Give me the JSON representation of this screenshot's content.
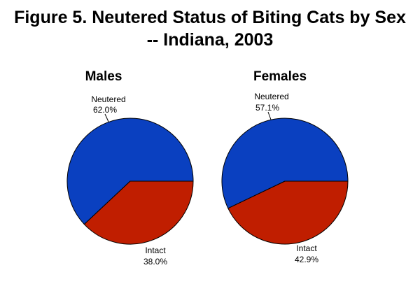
{
  "figure": {
    "title_line1": "Figure 5. Neutered Status of Biting Cats by Sex",
    "title_line2": "-- Indiana, 2003"
  },
  "colors": {
    "neutered": "#0a40c0",
    "intact": "#c01e00"
  },
  "chart_data": [
    {
      "type": "pie",
      "title": "Males",
      "slices": [
        {
          "label": "Neutered",
          "value": 62.0,
          "display": "62.0%",
          "color": "#0a40c0"
        },
        {
          "label": "Intact",
          "value": 38.0,
          "display": "38.0%",
          "color": "#c01e00"
        }
      ]
    },
    {
      "type": "pie",
      "title": "Females",
      "slices": [
        {
          "label": "Neutered",
          "value": 57.1,
          "display": "57.1%",
          "color": "#0a40c0"
        },
        {
          "label": "Intact",
          "value": 42.9,
          "display": "42.9%",
          "color": "#c01e00"
        }
      ]
    }
  ]
}
